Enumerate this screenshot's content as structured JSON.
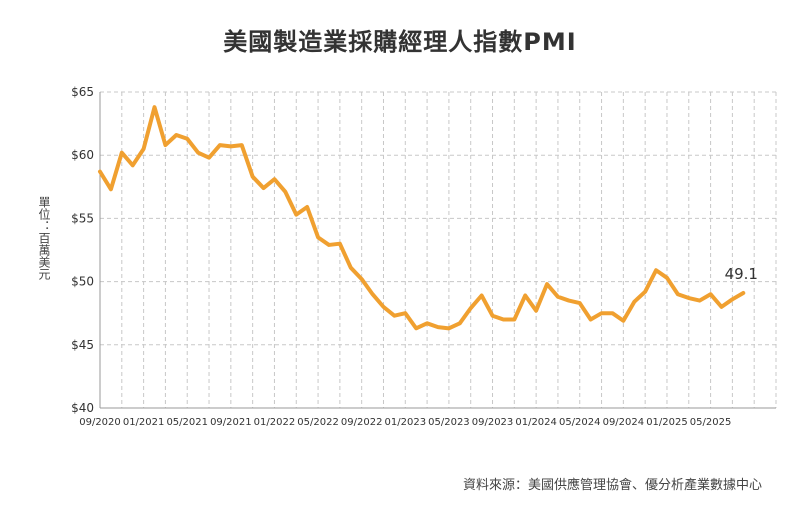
{
  "title": "美國製造業採購經理人指數PMI",
  "source": "資料來源：美國供應管理協會、優分析產業數據中心",
  "colors": {
    "line": "#F0A030",
    "grid": "#C8C8C8",
    "text": "#333333"
  },
  "chart_data": {
    "type": "line",
    "title": "美國製造業採購經理人指數PMI",
    "ylabel": "單位：百萬美元",
    "xlabel": "",
    "ylim": [
      40,
      65
    ],
    "yticks": [
      "$65",
      "$60",
      "$55",
      "$50",
      "$45",
      "$40"
    ],
    "ytick_values": [
      65,
      60,
      55,
      50,
      45,
      40
    ],
    "xtick_labels": [
      "09/2020",
      "01/2021",
      "05/2021",
      "09/2021",
      "01/2022",
      "05/2022",
      "09/2022",
      "01/2023",
      "05/2023",
      "09/2023",
      "01/2024",
      "05/2024",
      "09/2024",
      "01/2025",
      "05/2025"
    ],
    "xtick_month_index": [
      0,
      4,
      8,
      12,
      16,
      20,
      24,
      28,
      32,
      36,
      40,
      44,
      48,
      52,
      56
    ],
    "start_month": "09/2020",
    "grid": true,
    "legend": "none",
    "annotation": {
      "text": "49.1",
      "month": "08/2025"
    },
    "series": [
      {
        "name": "",
        "months": [
          "09/2020",
          "10/2020",
          "11/2020",
          "12/2020",
          "01/2021",
          "02/2021",
          "03/2021",
          "04/2021",
          "05/2021",
          "06/2021",
          "07/2021",
          "08/2021",
          "09/2021",
          "10/2021",
          "11/2021",
          "12/2021",
          "01/2022",
          "02/2022",
          "03/2022",
          "04/2022",
          "05/2022",
          "06/2022",
          "07/2022",
          "08/2022",
          "09/2022",
          "10/2022",
          "11/2022",
          "12/2022",
          "01/2023",
          "02/2023",
          "03/2023",
          "04/2023",
          "05/2023",
          "06/2023",
          "07/2023",
          "08/2023",
          "09/2023",
          "10/2023",
          "11/2023",
          "12/2023",
          "01/2024",
          "02/2024",
          "03/2024",
          "04/2024",
          "05/2024",
          "06/2024",
          "07/2024",
          "08/2024",
          "09/2024",
          "10/2024",
          "11/2024",
          "12/2024",
          "01/2025",
          "02/2025",
          "03/2025",
          "04/2025",
          "05/2025",
          "06/2025",
          "07/2025",
          "08/2025"
        ],
        "values": [
          58.7,
          57.3,
          60.2,
          59.2,
          60.5,
          63.8,
          60.8,
          61.6,
          61.3,
          60.2,
          59.8,
          60.8,
          60.7,
          60.8,
          58.3,
          57.4,
          58.1,
          57.1,
          55.3,
          55.9,
          53.5,
          52.9,
          53.0,
          51.1,
          50.2,
          49.0,
          48.0,
          47.3,
          47.5,
          46.3,
          46.7,
          46.4,
          46.3,
          46.7,
          47.9,
          48.9,
          47.3,
          47.0,
          47.0,
          48.9,
          47.7,
          49.8,
          48.8,
          48.5,
          48.3,
          47.0,
          47.5,
          47.5,
          46.9,
          48.4,
          49.2,
          50.9,
          50.3,
          49.0,
          48.7,
          48.5,
          49.0,
          48.0,
          48.6,
          49.1
        ]
      }
    ]
  }
}
